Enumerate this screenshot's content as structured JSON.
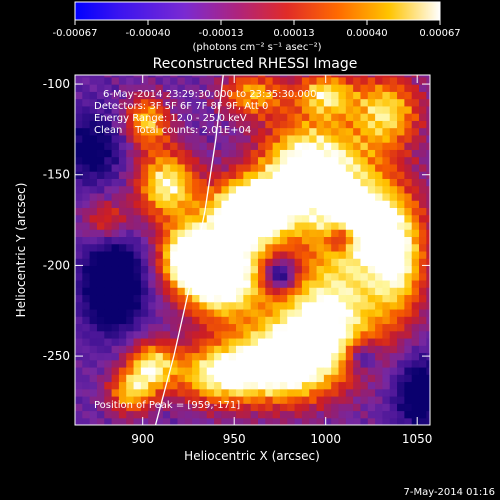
{
  "chart_data": {
    "type": "heatmap",
    "title": "Reconstructed RHESSI Image",
    "xlabel": "Heliocentric X (arcsec)",
    "ylabel": "Heliocentric Y (arcsec)",
    "xlim": [
      863,
      1057
    ],
    "ylim": [
      -288,
      -95
    ],
    "xticks": [
      900,
      950,
      1000,
      1050
    ],
    "yticks": [
      -100,
      -150,
      -200,
      -250
    ],
    "colorbar": {
      "ticks": [
        "-0.00067",
        "-0.00040",
        "-0.00013",
        "0.00013",
        "0.00040",
        "0.00067"
      ],
      "range": [
        -0.00067,
        0.00067
      ],
      "unit_label": "(photons cm⁻² s⁻¹ asec⁻²)"
    },
    "info_lines": [
      "6-May-2014 23:29:30.000 to 23:35:30.000",
      "Detectors: 3F 5F 6F 7F 8F 9F, Att 0",
      "Energy Range: 12.0 - 25.0 keV",
      "Clean    Total counts: 2.01E+04"
    ],
    "peak_label": "Position of Peak = [959,-171]",
    "peak": [
      959,
      -171
    ],
    "limb_curve": [
      [
        907,
        -288
      ],
      [
        917,
        -250
      ],
      [
        926,
        -210
      ],
      [
        934,
        -170
      ],
      [
        940,
        -130
      ],
      [
        944,
        -95
      ]
    ],
    "blobs": [
      {
        "x": 959,
        "y": -170,
        "sx": 16,
        "sy": 13,
        "a": 1.0
      },
      {
        "x": 943,
        "y": -205,
        "sx": 16,
        "sy": 17,
        "a": 0.92
      },
      {
        "x": 925,
        "y": -195,
        "sx": 11,
        "sy": 12,
        "a": 0.72
      },
      {
        "x": 913,
        "y": -155,
        "sx": 12,
        "sy": 14,
        "a": 0.68
      },
      {
        "x": 902,
        "y": -120,
        "sx": 9,
        "sy": 10,
        "a": 0.55
      },
      {
        "x": 990,
        "y": -145,
        "sx": 19,
        "sy": 19,
        "a": 0.8
      },
      {
        "x": 1020,
        "y": -175,
        "sx": 20,
        "sy": 22,
        "a": 0.72
      },
      {
        "x": 1000,
        "y": -230,
        "sx": 22,
        "sy": 22,
        "a": 0.74
      },
      {
        "x": 975,
        "y": -255,
        "sx": 20,
        "sy": 15,
        "a": 0.75
      },
      {
        "x": 1033,
        "y": -115,
        "sx": 14,
        "sy": 15,
        "a": 0.6
      },
      {
        "x": 1000,
        "y": -105,
        "sx": 11,
        "sy": 9,
        "a": 0.55
      },
      {
        "x": 960,
        "y": -105,
        "sx": 13,
        "sy": 9,
        "a": 0.5
      },
      {
        "x": 940,
        "y": -260,
        "sx": 16,
        "sy": 12,
        "a": 0.62
      },
      {
        "x": 905,
        "y": -255,
        "sx": 10,
        "sy": 10,
        "a": 0.6
      },
      {
        "x": 893,
        "y": -270,
        "sx": 9,
        "sy": 9,
        "a": 0.5
      },
      {
        "x": 1040,
        "y": -200,
        "sx": 11,
        "sy": 22,
        "a": 0.5
      },
      {
        "x": 880,
        "y": -175,
        "sx": 9,
        "sy": 9,
        "a": 0.35
      }
    ],
    "holes": [
      {
        "x": 975,
        "y": -205,
        "sx": 6,
        "sy": 6,
        "a": 0.55
      },
      {
        "x": 1008,
        "y": -185,
        "sx": 5,
        "sy": 5,
        "a": 0.4
      },
      {
        "x": 1020,
        "y": -250,
        "sx": 6,
        "sy": 6,
        "a": 0.4
      }
    ],
    "dark_wells": [
      {
        "x": 884,
        "y": -210,
        "sx": 11,
        "sy": 17,
        "a": 0.65
      },
      {
        "x": 873,
        "y": -135,
        "sx": 12,
        "sy": 14,
        "a": 0.35
      },
      {
        "x": 1052,
        "y": -270,
        "sx": 10,
        "sy": 14,
        "a": 0.45
      }
    ]
  },
  "footer": {
    "timestamp": "7-May-2014 01:16"
  }
}
